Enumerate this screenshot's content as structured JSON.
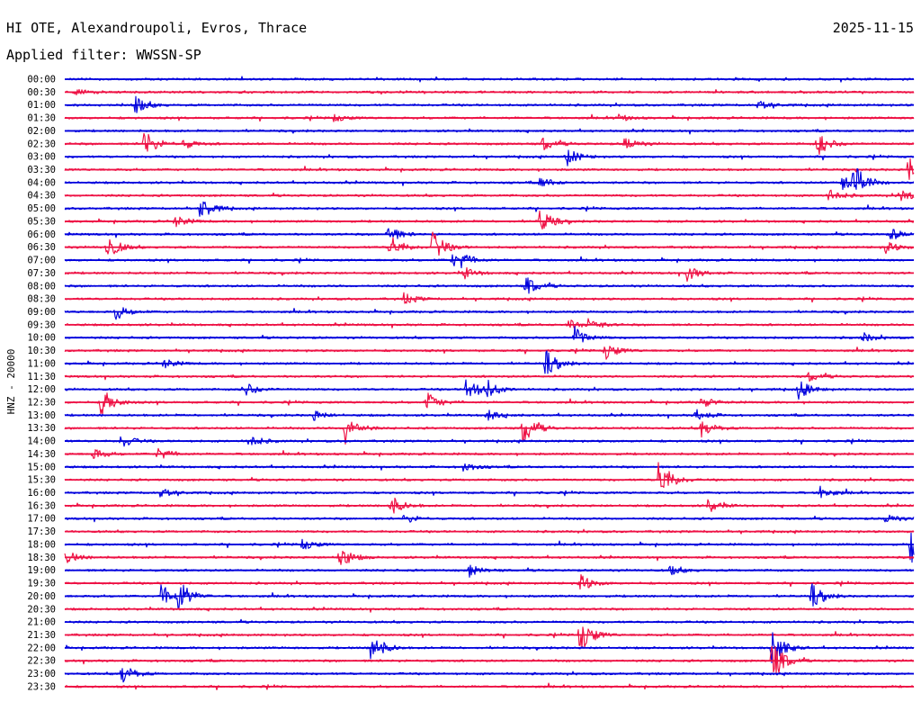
{
  "header": {
    "station": "HI OTE, Alexandroupoli, Evros, Thrace",
    "date": "2025-11-15",
    "filter": "Applied filter: WWSSN-SP"
  },
  "chart_data": {
    "type": "line",
    "ylabel": "HNZ - 20000",
    "row_labels": [
      "00:00",
      "00:30",
      "01:00",
      "01:30",
      "02:00",
      "02:30",
      "03:00",
      "03:30",
      "04:00",
      "04:30",
      "05:00",
      "05:30",
      "06:00",
      "06:30",
      "07:00",
      "07:30",
      "08:00",
      "08:30",
      "09:00",
      "09:30",
      "10:00",
      "10:30",
      "11:00",
      "11:30",
      "12:00",
      "12:30",
      "13:00",
      "13:30",
      "14:00",
      "14:30",
      "15:00",
      "15:30",
      "16:00",
      "16:30",
      "17:00",
      "17:30",
      "18:00",
      "18:30",
      "19:00",
      "19:30",
      "20:00",
      "20:30",
      "21:00",
      "21:30",
      "22:00",
      "22:30",
      "23:00",
      "23:30"
    ],
    "trace_colors": [
      "#0000dd",
      "#ee1144"
    ],
    "minutes_per_row": 30,
    "events": [
      {
        "row": 1,
        "min": 0.4,
        "amp": 0.3
      },
      {
        "row": 2,
        "min": 2.5,
        "amp": 0.9
      },
      {
        "row": 2,
        "min": 24.5,
        "amp": 0.6
      },
      {
        "row": 3,
        "min": 9.5,
        "amp": 0.4
      },
      {
        "row": 3,
        "min": 19.5,
        "amp": 0.4
      },
      {
        "row": 5,
        "min": 2.8,
        "amp": 1.5
      },
      {
        "row": 5,
        "min": 4.2,
        "amp": 0.5
      },
      {
        "row": 5,
        "min": 16.9,
        "amp": 0.7
      },
      {
        "row": 5,
        "min": 19.8,
        "amp": 0.7
      },
      {
        "row": 5,
        "min": 26.6,
        "amp": 1.3
      },
      {
        "row": 6,
        "min": 17.7,
        "amp": 1.0
      },
      {
        "row": 7,
        "min": 29.8,
        "amp": 1.4
      },
      {
        "row": 8,
        "min": 16.8,
        "amp": 0.6
      },
      {
        "row": 8,
        "min": 27.5,
        "amp": 1.2
      },
      {
        "row": 8,
        "min": 27.9,
        "amp": 1.6
      },
      {
        "row": 9,
        "min": 27.0,
        "amp": 0.7
      },
      {
        "row": 9,
        "min": 29.5,
        "amp": 0.7
      },
      {
        "row": 10,
        "min": 4.8,
        "amp": 1.2
      },
      {
        "row": 11,
        "min": 3.9,
        "amp": 0.6
      },
      {
        "row": 11,
        "min": 16.8,
        "amp": 1.2
      },
      {
        "row": 12,
        "min": 11.4,
        "amp": 1.0
      },
      {
        "row": 12,
        "min": 29.2,
        "amp": 0.6
      },
      {
        "row": 13,
        "min": 1.5,
        "amp": 1.3
      },
      {
        "row": 13,
        "min": 11.5,
        "amp": 1.2
      },
      {
        "row": 13,
        "min": 13.0,
        "amp": 1.6
      },
      {
        "row": 13,
        "min": 29.0,
        "amp": 0.6
      },
      {
        "row": 14,
        "min": 13.7,
        "amp": 0.6
      },
      {
        "row": 14,
        "min": 14.0,
        "amp": 0.6
      },
      {
        "row": 15,
        "min": 14.1,
        "amp": 0.6
      },
      {
        "row": 15,
        "min": 22.0,
        "amp": 0.8
      },
      {
        "row": 16,
        "min": 16.3,
        "amp": 1.0
      },
      {
        "row": 17,
        "min": 12.0,
        "amp": 0.6
      },
      {
        "row": 18,
        "min": 1.8,
        "amp": 0.8
      },
      {
        "row": 19,
        "min": 17.8,
        "amp": 0.5
      },
      {
        "row": 19,
        "min": 18.5,
        "amp": 0.6
      },
      {
        "row": 20,
        "min": 18.0,
        "amp": 1.1
      },
      {
        "row": 20,
        "min": 28.2,
        "amp": 0.5
      },
      {
        "row": 21,
        "min": 19.1,
        "amp": 0.9
      },
      {
        "row": 22,
        "min": 3.5,
        "amp": 0.5
      },
      {
        "row": 22,
        "min": 17.0,
        "amp": 1.3
      },
      {
        "row": 23,
        "min": 26.3,
        "amp": 0.5
      },
      {
        "row": 24,
        "min": 6.3,
        "amp": 0.9
      },
      {
        "row": 24,
        "min": 14.2,
        "amp": 1.5
      },
      {
        "row": 24,
        "min": 14.9,
        "amp": 0.8
      },
      {
        "row": 24,
        "min": 25.9,
        "amp": 1.0
      },
      {
        "row": 25,
        "min": 1.3,
        "amp": 1.5
      },
      {
        "row": 25,
        "min": 12.8,
        "amp": 1.0
      },
      {
        "row": 25,
        "min": 22.5,
        "amp": 0.5
      },
      {
        "row": 26,
        "min": 8.8,
        "amp": 0.5
      },
      {
        "row": 26,
        "min": 14.9,
        "amp": 0.6
      },
      {
        "row": 26,
        "min": 22.3,
        "amp": 0.6
      },
      {
        "row": 27,
        "min": 9.9,
        "amp": 1.6
      },
      {
        "row": 27,
        "min": 16.2,
        "amp": 1.6
      },
      {
        "row": 27,
        "min": 22.5,
        "amp": 0.9
      },
      {
        "row": 28,
        "min": 2.0,
        "amp": 0.7
      },
      {
        "row": 28,
        "min": 6.5,
        "amp": 0.7
      },
      {
        "row": 29,
        "min": 1.0,
        "amp": 0.6
      },
      {
        "row": 29,
        "min": 3.3,
        "amp": 0.7
      },
      {
        "row": 30,
        "min": 14.1,
        "amp": 0.5
      },
      {
        "row": 31,
        "min": 21.0,
        "amp": 2.2
      },
      {
        "row": 32,
        "min": 3.4,
        "amp": 0.6
      },
      {
        "row": 32,
        "min": 26.7,
        "amp": 0.6
      },
      {
        "row": 33,
        "min": 11.5,
        "amp": 1.1
      },
      {
        "row": 33,
        "min": 22.7,
        "amp": 0.8
      },
      {
        "row": 34,
        "min": 12.0,
        "amp": 0.5
      },
      {
        "row": 34,
        "min": 29.0,
        "amp": 0.5
      },
      {
        "row": 36,
        "min": 8.4,
        "amp": 0.6
      },
      {
        "row": 36,
        "min": 29.9,
        "amp": 2.0
      },
      {
        "row": 37,
        "min": 0.0,
        "amp": 0.8
      },
      {
        "row": 37,
        "min": 9.7,
        "amp": 1.2
      },
      {
        "row": 38,
        "min": 14.3,
        "amp": 0.6
      },
      {
        "row": 38,
        "min": 21.4,
        "amp": 0.5
      },
      {
        "row": 39,
        "min": 18.2,
        "amp": 0.9
      },
      {
        "row": 40,
        "min": 3.4,
        "amp": 1.2
      },
      {
        "row": 40,
        "min": 4.0,
        "amp": 1.6
      },
      {
        "row": 40,
        "min": 26.4,
        "amp": 1.2
      },
      {
        "row": 43,
        "min": 18.2,
        "amp": 1.9
      },
      {
        "row": 44,
        "min": 10.8,
        "amp": 1.8
      },
      {
        "row": 44,
        "min": 25.0,
        "amp": 1.8
      },
      {
        "row": 45,
        "min": 25.0,
        "amp": 2.2
      },
      {
        "row": 46,
        "min": 2.0,
        "amp": 1.1
      }
    ]
  }
}
